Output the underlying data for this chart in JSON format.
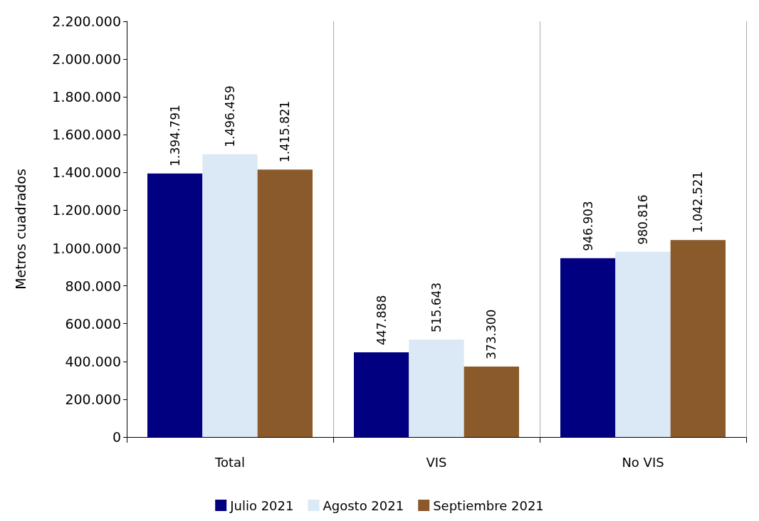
{
  "chart_data": {
    "type": "bar",
    "ylabel": "Metros cuadrados",
    "categories": [
      "Total",
      "VIS",
      "No VIS"
    ],
    "series": [
      {
        "name": "Julio 2021",
        "color": "#000080",
        "values": [
          1394791,
          447888,
          946903
        ],
        "value_labels": [
          "1.394.791",
          "447.888",
          "946.903"
        ]
      },
      {
        "name": "Agosto 2021",
        "color": "#dbe8f6",
        "values": [
          1496459,
          515643,
          980816
        ],
        "value_labels": [
          "1.496.459",
          "515.643",
          "980.816"
        ]
      },
      {
        "name": "Septiembre 2021",
        "color": "#8b5a2b",
        "values": [
          1415821,
          373300,
          1042521
        ],
        "value_labels": [
          "1.415.821",
          "373.300",
          "1.042.521"
        ]
      }
    ],
    "ylim": [
      0,
      2200000
    ],
    "yticks": [
      {
        "value": 0,
        "label": "0"
      },
      {
        "value": 200000,
        "label": "200.000"
      },
      {
        "value": 400000,
        "label": "400.000"
      },
      {
        "value": 600000,
        "label": "600.000"
      },
      {
        "value": 800000,
        "label": "800.000"
      },
      {
        "value": 1000000,
        "label": "1.000.000"
      },
      {
        "value": 1200000,
        "label": "1.200.000"
      },
      {
        "value": 1400000,
        "label": "1.400.000"
      },
      {
        "value": 1600000,
        "label": "1.600.000"
      },
      {
        "value": 1800000,
        "label": "1.800.000"
      },
      {
        "value": 2000000,
        "label": "2.000.000"
      },
      {
        "value": 2200000,
        "label": "2.200.000"
      }
    ],
    "grid": "x",
    "legend": "bottom"
  }
}
